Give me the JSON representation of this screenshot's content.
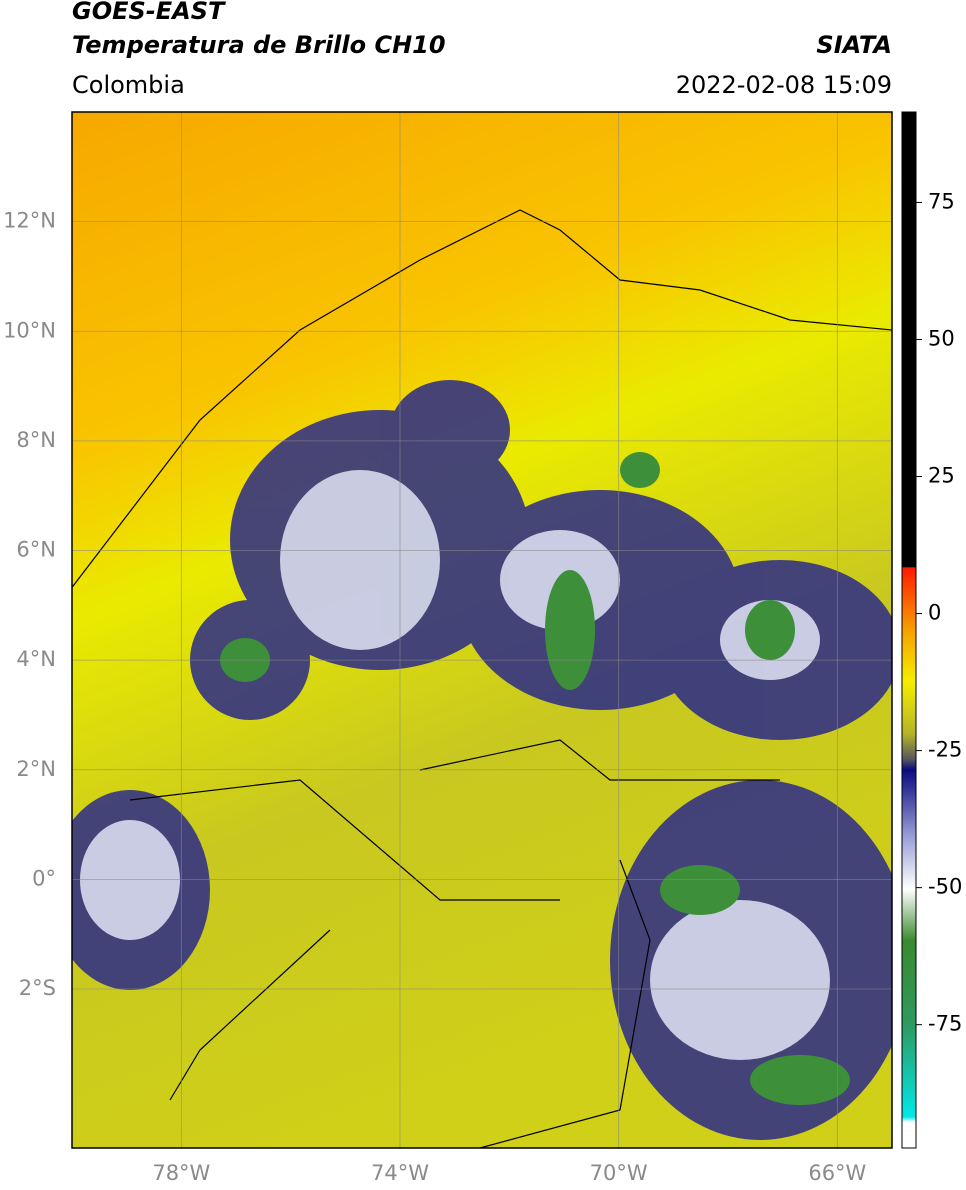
{
  "header": {
    "title": "GOES-EAST",
    "subtitle": "Temperatura de Brillo CH10",
    "source": "SIATA",
    "region": "Colombia",
    "datetime": "2022-02-08 15:09"
  },
  "map": {
    "xlim": [
      -80,
      -65
    ],
    "ylim": [
      -4.9,
      14
    ],
    "xticks": [
      {
        "value": -78,
        "label": "78°W"
      },
      {
        "value": -74,
        "label": "74°W"
      },
      {
        "value": -70,
        "label": "70°W"
      },
      {
        "value": -66,
        "label": "66°W"
      }
    ],
    "yticks": [
      {
        "value": 12,
        "label": "12°N"
      },
      {
        "value": 10,
        "label": "10°N"
      },
      {
        "value": 8,
        "label": "8°N"
      },
      {
        "value": 6,
        "label": "6°N"
      },
      {
        "value": 4,
        "label": "4°N"
      },
      {
        "value": 2,
        "label": "2°N"
      },
      {
        "value": 0,
        "label": "0°"
      },
      {
        "value": -2,
        "label": "2°S"
      }
    ],
    "grid": true
  },
  "colorbar": {
    "lim": [
      -97.5,
      91.5
    ],
    "ticks": [
      75,
      50,
      25,
      0,
      -25,
      -50,
      -75
    ]
  }
}
